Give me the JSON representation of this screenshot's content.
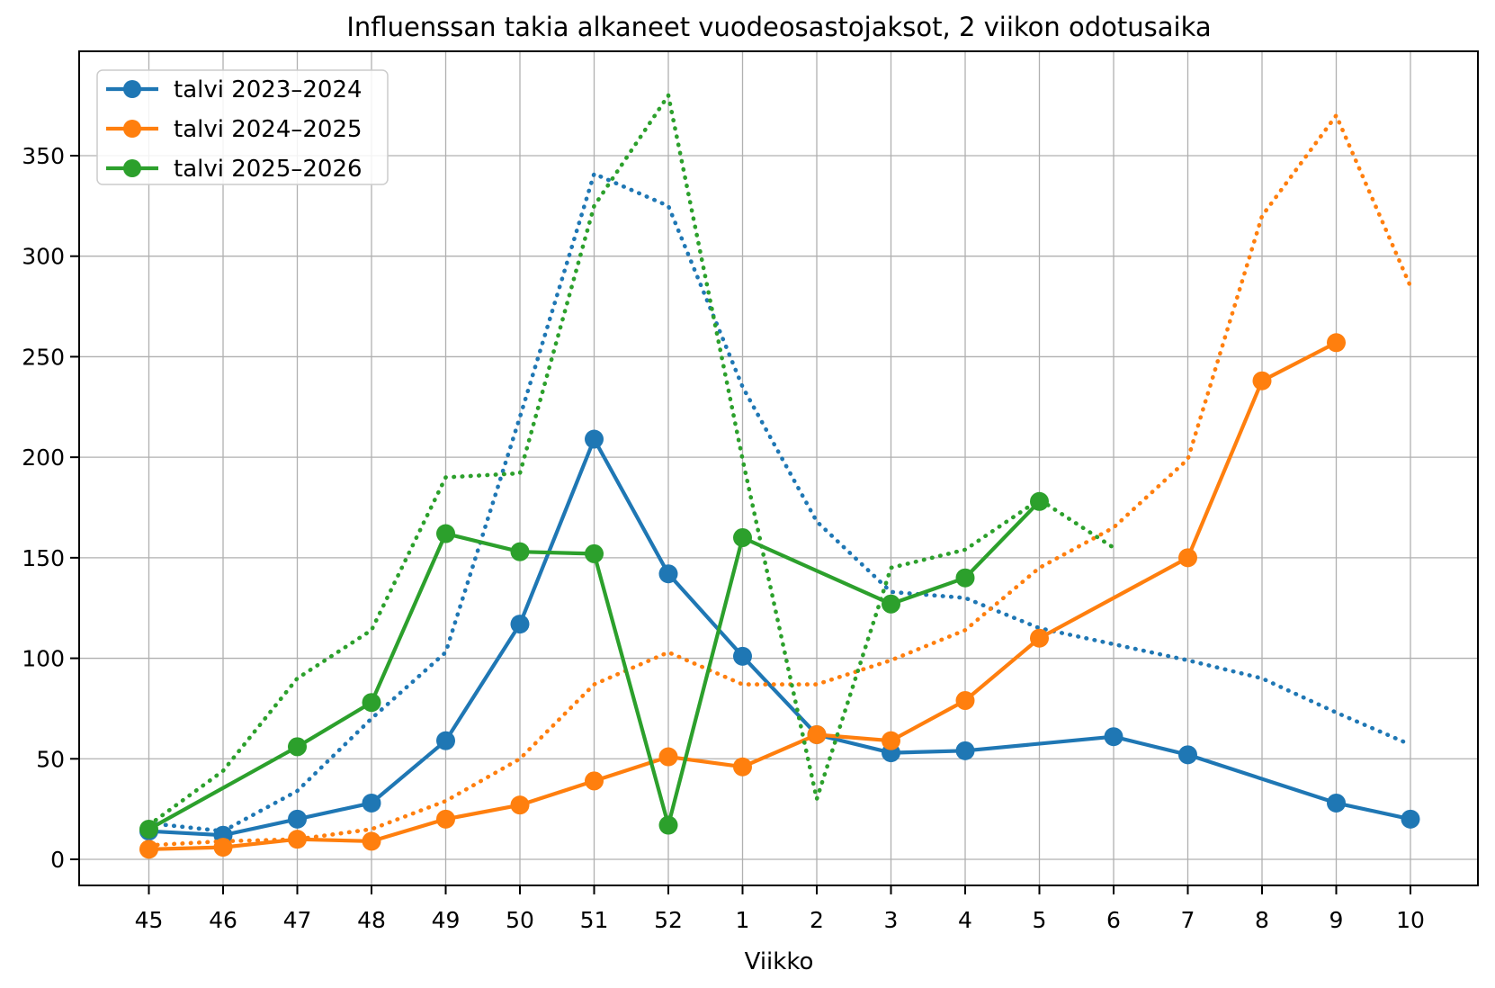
{
  "chart_data": {
    "type": "line",
    "title": "Influenssan takia alkaneet vuodeosastojaksot, 2 viikon odotusaika",
    "xlabel": "Viikko",
    "ylabel": "",
    "categories": [
      "45",
      "46",
      "47",
      "48",
      "49",
      "50",
      "51",
      "52",
      "1",
      "2",
      "3",
      "4",
      "5",
      "6",
      "7",
      "8",
      "9",
      "10"
    ],
    "yticks": [
      0,
      50,
      100,
      150,
      200,
      250,
      300,
      350
    ],
    "ylim": [
      -13,
      402
    ],
    "grid": true,
    "grid_color": "#b0b0b0",
    "background_color": "#ffffff",
    "legend_position": "upper-left",
    "legend_entries": [
      "talvi 2023–2024",
      "talvi 2024–2025",
      "talvi 2025–2026"
    ],
    "series": [
      {
        "name": "talvi 2023–2024",
        "variant": "dotted",
        "color": "#1f77b4",
        "markers": false,
        "in_legend": false,
        "values": [
          18,
          14,
          34,
          70,
          103,
          220,
          341,
          325,
          235,
          168,
          133,
          130,
          115,
          107,
          99,
          90,
          73,
          57
        ]
      },
      {
        "name": "talvi 2023–2024",
        "variant": "solid",
        "color": "#1f77b4",
        "markers": true,
        "in_legend": true,
        "values": [
          14,
          12,
          20,
          28,
          59,
          117,
          209,
          142,
          101,
          62,
          53,
          54,
          null,
          61,
          52,
          null,
          28,
          20
        ]
      },
      {
        "name": "talvi 2024–2025",
        "variant": "dotted",
        "color": "#ff7f0e",
        "markers": false,
        "in_legend": false,
        "values": [
          7,
          9,
          10,
          15,
          29,
          50,
          87,
          103,
          87,
          87,
          99,
          114,
          145,
          165,
          199,
          320,
          370,
          285
        ]
      },
      {
        "name": "talvi 2024–2025",
        "variant": "solid",
        "color": "#ff7f0e",
        "markers": true,
        "in_legend": true,
        "values": [
          5,
          6,
          10,
          9,
          20,
          27,
          39,
          51,
          46,
          62,
          59,
          79,
          110,
          null,
          150,
          238,
          257,
          null
        ]
      },
      {
        "name": "talvi 2025–2026",
        "variant": "dotted",
        "color": "#2ca02c",
        "markers": false,
        "in_legend": false,
        "values": [
          17,
          44,
          90,
          114,
          190,
          192,
          325,
          380,
          199,
          30,
          145,
          154,
          179,
          155,
          null,
          null,
          null,
          null
        ]
      },
      {
        "name": "talvi 2025–2026",
        "variant": "solid",
        "color": "#2ca02c",
        "markers": true,
        "in_legend": true,
        "values": [
          15,
          null,
          56,
          78,
          162,
          153,
          152,
          17,
          160,
          null,
          127,
          140,
          178,
          null,
          null,
          null,
          null,
          null
        ]
      }
    ]
  }
}
